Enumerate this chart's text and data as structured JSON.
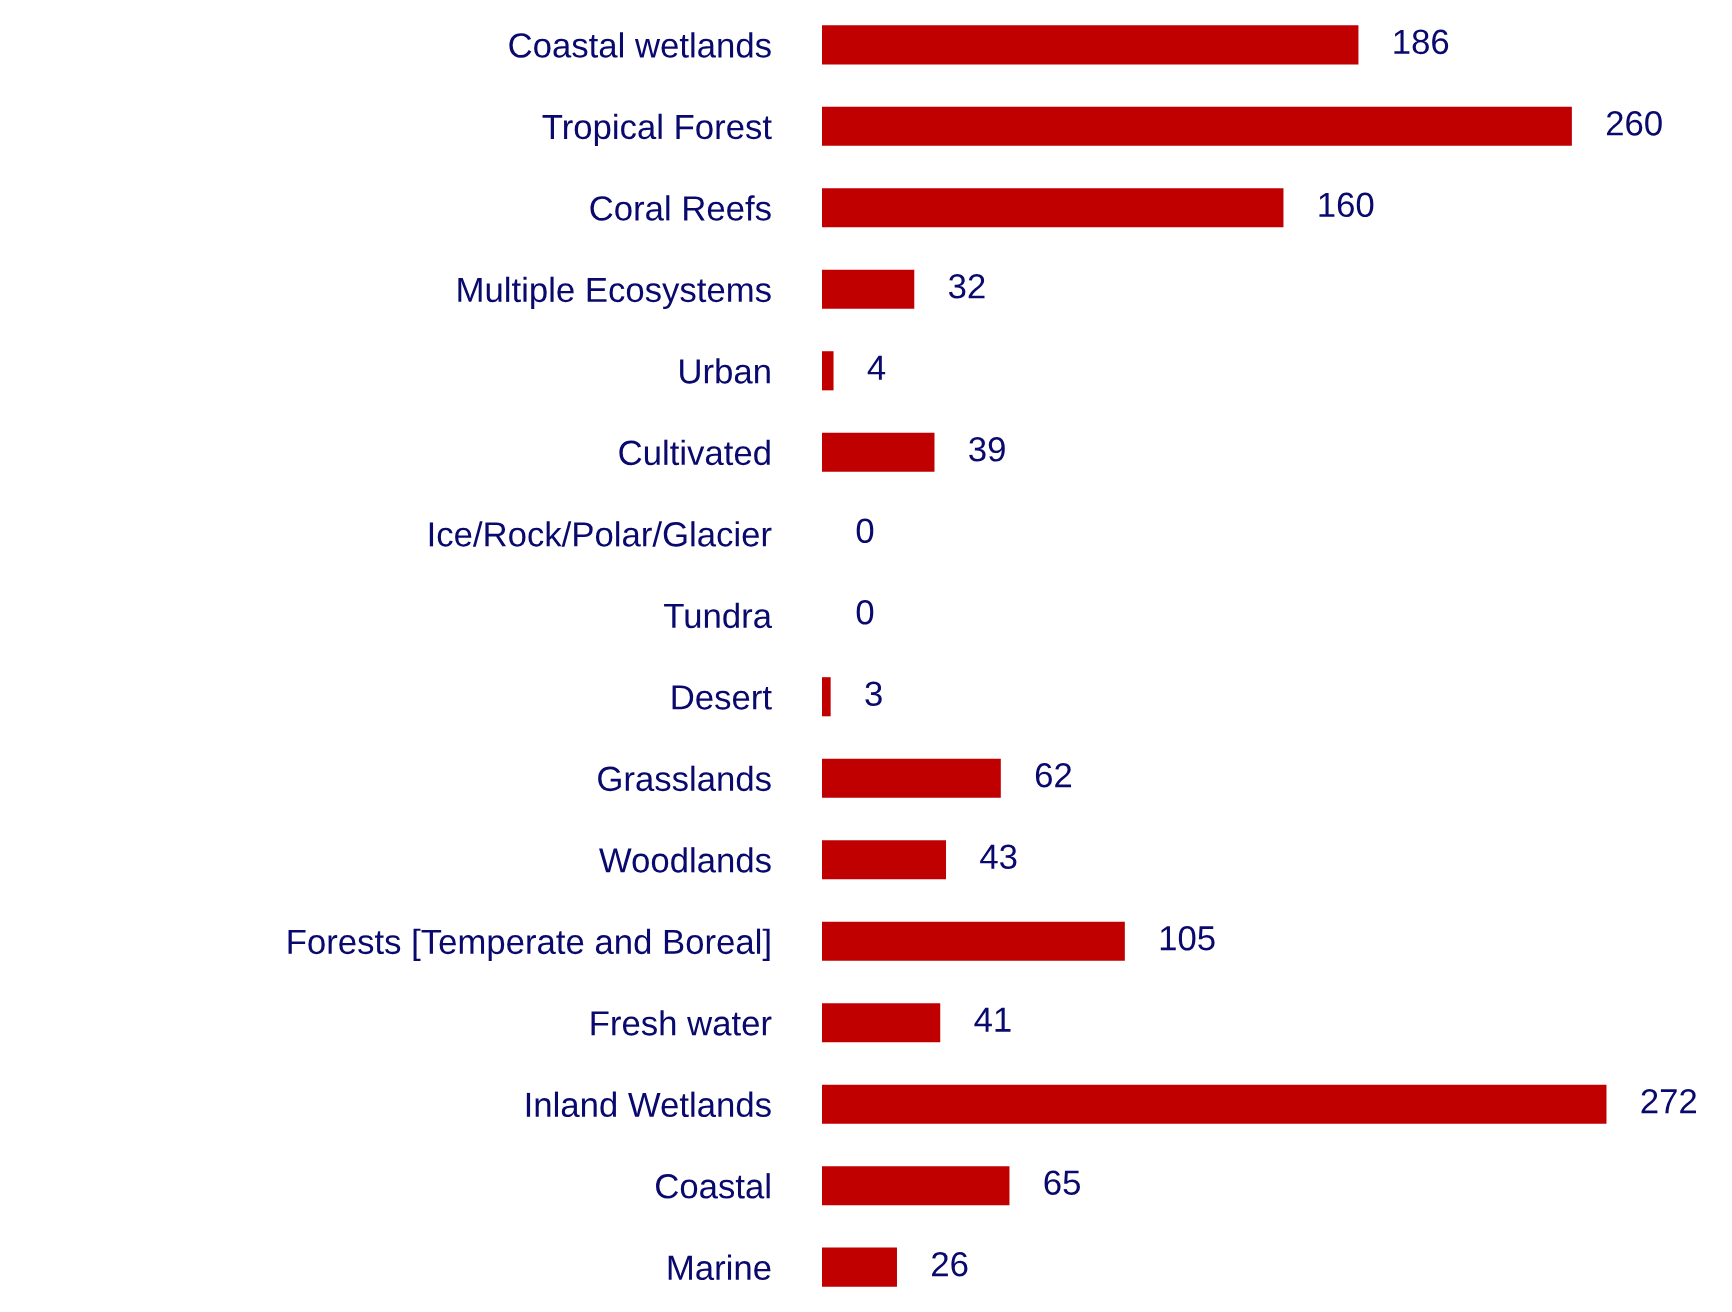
{
  "chart_data": {
    "type": "bar",
    "orientation": "horizontal",
    "categories": [
      "Coastal wetlands",
      "Tropical Forest",
      "Coral Reefs",
      "Multiple Ecosystems",
      "Urban",
      "Cultivated",
      "Ice/Rock/Polar/Glacier",
      "Tundra",
      "Desert",
      "Grasslands",
      "Woodlands",
      "Forests [Temperate and Boreal]",
      "Fresh water",
      "Inland Wetlands",
      "Coastal",
      "Marine"
    ],
    "values": [
      186,
      260,
      160,
      32,
      4,
      39,
      0,
      0,
      3,
      62,
      43,
      105,
      41,
      272,
      65,
      26
    ],
    "color": "#c00000",
    "data_labels": true,
    "grid": false,
    "legend": false
  }
}
